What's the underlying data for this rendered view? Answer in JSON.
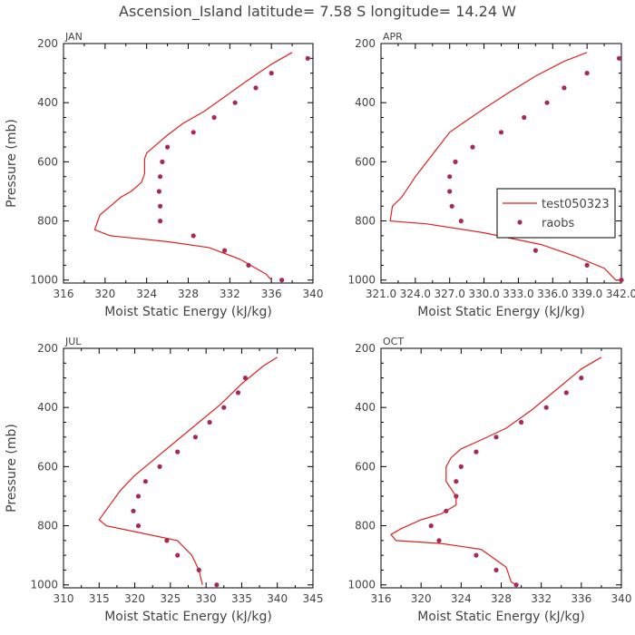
{
  "title": "Ascension_Island  latitude= 7.58 S longitude= 14.24 W",
  "colors": {
    "model": "#dd2222",
    "obs": "#a82a52",
    "axis": "#000000",
    "text": "#444444"
  },
  "legend": {
    "model": "test050323",
    "obs": "raobs"
  },
  "chart_data": [
    {
      "type": "line",
      "panel": "JAN",
      "xlabel": "Moist Static Energy (kJ/kg)",
      "ylabel": "Pressure (mb)",
      "xlim": [
        316,
        340
      ],
      "ylim": [
        1010,
        200
      ],
      "xticks": [
        "316",
        "320",
        "324",
        "328",
        "332",
        "336",
        "340"
      ],
      "yticks": [
        "200",
        "400",
        "600",
        "800",
        "1000"
      ],
      "series": [
        {
          "name": "test050323",
          "kind": "line",
          "points": [
            [
              338.0,
              230
            ],
            [
              336.0,
              270
            ],
            [
              333.5,
              330
            ],
            [
              331.5,
              380
            ],
            [
              329.5,
              430
            ],
            [
              327.5,
              470
            ],
            [
              326.0,
              510
            ],
            [
              325.0,
              540
            ],
            [
              324.0,
              570
            ],
            [
              323.8,
              590
            ],
            [
              323.8,
              640
            ],
            [
              323.5,
              670
            ],
            [
              322.5,
              700
            ],
            [
              321.5,
              720
            ],
            [
              320.5,
              750
            ],
            [
              319.5,
              780
            ],
            [
              319.0,
              830
            ],
            [
              320.5,
              850
            ],
            [
              326.0,
              870
            ],
            [
              330.0,
              890
            ],
            [
              333.0,
              930
            ],
            [
              335.5,
              980
            ],
            [
              336.0,
              1000
            ]
          ]
        },
        {
          "name": "raobs",
          "kind": "points",
          "points": [
            [
              339.5,
              250
            ],
            [
              336.0,
              300
            ],
            [
              334.5,
              350
            ],
            [
              332.5,
              400
            ],
            [
              330.5,
              450
            ],
            [
              328.5,
              500
            ],
            [
              326.0,
              550
            ],
            [
              325.5,
              600
            ],
            [
              325.3,
              650
            ],
            [
              325.2,
              700
            ],
            [
              325.3,
              750
            ],
            [
              325.3,
              800
            ],
            [
              328.5,
              850
            ],
            [
              331.5,
              900
            ],
            [
              333.8,
              950
            ],
            [
              337.0,
              1000
            ]
          ]
        }
      ]
    },
    {
      "type": "line",
      "panel": "APR",
      "xlabel": "Moist Static Energy (kJ/kg)",
      "ylabel": "",
      "xlim": [
        321.0,
        342.0
      ],
      "ylim": [
        1010,
        200
      ],
      "xticks": [
        "321.0",
        "324.0",
        "327.0",
        "330.0",
        "333.0",
        "336.0",
        "339.0",
        "342.0"
      ],
      "yticks": [
        "200",
        "400",
        "600",
        "800",
        "1000"
      ],
      "series": [
        {
          "name": "test050323",
          "kind": "line",
          "points": [
            [
              339.0,
              230
            ],
            [
              337.0,
              260
            ],
            [
              334.5,
              310
            ],
            [
              332.0,
              370
            ],
            [
              330.0,
              420
            ],
            [
              328.5,
              460
            ],
            [
              327.0,
              500
            ],
            [
              326.0,
              550
            ],
            [
              325.0,
              600
            ],
            [
              324.0,
              650
            ],
            [
              323.5,
              680
            ],
            [
              322.8,
              720
            ],
            [
              322.0,
              750
            ],
            [
              321.8,
              800
            ],
            [
              325.0,
              810
            ],
            [
              330.0,
              840
            ],
            [
              335.0,
              880
            ],
            [
              338.0,
              920
            ],
            [
              340.5,
              960
            ],
            [
              341.5,
              1000
            ],
            [
              342.0,
              1000
            ]
          ]
        },
        {
          "name": "raobs",
          "kind": "points",
          "points": [
            [
              341.8,
              250
            ],
            [
              339.0,
              300
            ],
            [
              337.0,
              350
            ],
            [
              335.5,
              400
            ],
            [
              333.5,
              450
            ],
            [
              331.5,
              500
            ],
            [
              329.0,
              550
            ],
            [
              327.5,
              600
            ],
            [
              327.0,
              650
            ],
            [
              327.0,
              700
            ],
            [
              327.2,
              750
            ],
            [
              328.0,
              800
            ],
            [
              332.5,
              850
            ],
            [
              334.5,
              900
            ],
            [
              339.0,
              950
            ],
            [
              342.0,
              1000
            ]
          ]
        }
      ]
    },
    {
      "type": "line",
      "panel": "JUL",
      "xlabel": "Moist Static Energy (kJ/kg)",
      "ylabel": "Pressure (mb)",
      "xlim": [
        310,
        345
      ],
      "ylim": [
        1010,
        200
      ],
      "xticks": [
        "310",
        "315",
        "320",
        "325",
        "330",
        "335",
        "340",
        "345"
      ],
      "yticks": [
        "200",
        "400",
        "600",
        "800",
        "1000"
      ],
      "series": [
        {
          "name": "test050323",
          "kind": "line",
          "points": [
            [
              340.0,
              230
            ],
            [
              338.0,
              260
            ],
            [
              335.0,
              320
            ],
            [
              332.0,
              390
            ],
            [
              329.0,
              450
            ],
            [
              326.0,
              510
            ],
            [
              323.0,
              570
            ],
            [
              320.0,
              630
            ],
            [
              318.0,
              680
            ],
            [
              316.5,
              730
            ],
            [
              315.0,
              780
            ],
            [
              316.0,
              800
            ],
            [
              320.0,
              820
            ],
            [
              326.0,
              850
            ],
            [
              328.0,
              900
            ],
            [
              329.0,
              950
            ],
            [
              329.5,
              1000
            ]
          ]
        },
        {
          "name": "raobs",
          "kind": "points",
          "points": [
            [
              335.5,
              300
            ],
            [
              334.5,
              350
            ],
            [
              332.5,
              400
            ],
            [
              330.5,
              450
            ],
            [
              328.5,
              500
            ],
            [
              326.0,
              550
            ],
            [
              323.5,
              600
            ],
            [
              321.5,
              650
            ],
            [
              320.5,
              700
            ],
            [
              319.8,
              750
            ],
            [
              320.5,
              800
            ],
            [
              324.5,
              850
            ],
            [
              326.0,
              900
            ],
            [
              329.0,
              950
            ],
            [
              331.5,
              1000
            ]
          ]
        }
      ]
    },
    {
      "type": "line",
      "panel": "OCT",
      "xlabel": "Moist Static Energy (kJ/kg)",
      "ylabel": "",
      "xlim": [
        316,
        340
      ],
      "ylim": [
        1010,
        200
      ],
      "xticks": [
        "316",
        "320",
        "324",
        "328",
        "332",
        "336",
        "340"
      ],
      "yticks": [
        "200",
        "400",
        "600",
        "800",
        "1000"
      ],
      "series": [
        {
          "name": "test050323",
          "kind": "line",
          "points": [
            [
              338.0,
              230
            ],
            [
              336.0,
              270
            ],
            [
              333.5,
              340
            ],
            [
              331.0,
              410
            ],
            [
              328.5,
              470
            ],
            [
              326.0,
              510
            ],
            [
              324.0,
              540
            ],
            [
              323.0,
              570
            ],
            [
              322.5,
              600
            ],
            [
              322.5,
              650
            ],
            [
              323.5,
              700
            ],
            [
              323.5,
              730
            ],
            [
              322.0,
              760
            ],
            [
              320.0,
              780
            ],
            [
              318.0,
              810
            ],
            [
              317.0,
              830
            ],
            [
              317.5,
              850
            ],
            [
              322.0,
              860
            ],
            [
              326.0,
              880
            ],
            [
              328.5,
              940
            ],
            [
              329.0,
              990
            ],
            [
              329.5,
              1000
            ]
          ]
        },
        {
          "name": "raobs",
          "kind": "points",
          "points": [
            [
              336.0,
              300
            ],
            [
              334.5,
              350
            ],
            [
              332.5,
              400
            ],
            [
              330.0,
              450
            ],
            [
              327.5,
              500
            ],
            [
              325.5,
              550
            ],
            [
              324.0,
              600
            ],
            [
              323.5,
              650
            ],
            [
              323.5,
              700
            ],
            [
              322.5,
              750
            ],
            [
              321.0,
              800
            ],
            [
              321.8,
              850
            ],
            [
              325.5,
              900
            ],
            [
              327.5,
              950
            ],
            [
              329.5,
              1000
            ]
          ]
        }
      ]
    }
  ]
}
